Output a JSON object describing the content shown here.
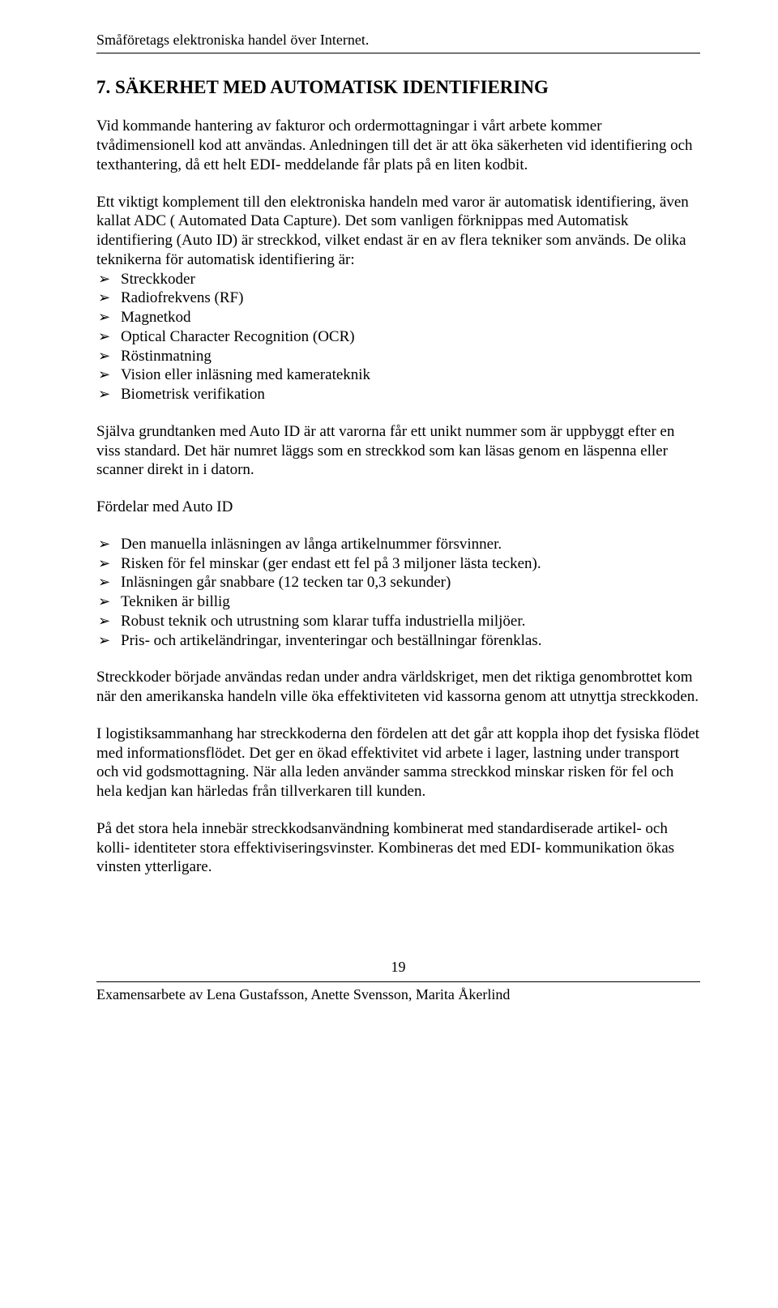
{
  "page": {
    "running_header": "Småföretags elektroniska handel över Internet.",
    "page_number": "19",
    "footer": "Examensarbete av Lena Gustafsson, Anette Svensson, Marita Åkerlind"
  },
  "section": {
    "title": "7. SÄKERHET MED AUTOMATISK IDENTIFIERING",
    "p1": "Vid kommande hantering av fakturor och ordermottagningar i vårt arbete kommer tvådimensionell kod att användas. Anledningen till det är att öka säkerheten vid identifiering och texthantering, då ett helt EDI- meddelande får plats på en liten kodbit.",
    "p2": "Ett viktigt komplement till den elektroniska handeln med varor är automatisk  identifiering, även kallat ADC ( Automated Data Capture). Det som vanligen förknippas med Automatisk identifiering (Auto ID) är streckkod, vilket endast är en  av flera tekniker som används. De olika teknikerna för automatisk identifiering är:",
    "list1": [
      "Streckkoder",
      "Radiofrekvens (RF)",
      "Magnetkod",
      "Optical Character Recognition (OCR)",
      "Röstinmatning",
      "Vision eller inläsning med kamerateknik",
      "Biometrisk verifikation"
    ],
    "p3": "Själva grundtanken med Auto ID är att varorna får ett unikt nummer som är uppbyggt efter en viss  standard. Det här numret läggs som en streckkod som kan läsas genom en läspenna eller scanner direkt in i datorn.",
    "sub1": "Fördelar med Auto ID",
    "list2": [
      "Den manuella inläsningen av långa artikelnummer försvinner.",
      "Risken för fel minskar (ger endast ett fel på 3 miljoner lästa tecken).",
      "Inläsningen går snabbare (12 tecken tar 0,3 sekunder)",
      "Tekniken är billig",
      "Robust teknik och utrustning som klarar tuffa industriella miljöer.",
      "Pris- och artikeländringar, inventeringar och beställningar förenklas."
    ],
    "p4": "Streckkoder började användas redan under andra världskriget, men det riktiga genombrottet kom när den amerikanska handeln ville öka effektiviteten vid kassorna genom att utnyttja streckkoden.",
    "p5": "I logistiksammanhang har streckkoderna den fördelen att det går att koppla ihop det fysiska flödet med informationsflödet. Det ger en ökad effektivitet vid arbete i lager, lastning under transport och vid godsmottagning. När alla leden använder samma streckkod minskar risken för fel och hela kedjan kan härledas från tillverkaren till kunden.",
    "p6": "På det stora hela innebär streckkodsanvändning kombinerat med standardiserade artikel- och kolli- identiteter stora effektiviseringsvinster. Kombineras det med EDI- kommunikation ökas vinsten ytterligare."
  }
}
